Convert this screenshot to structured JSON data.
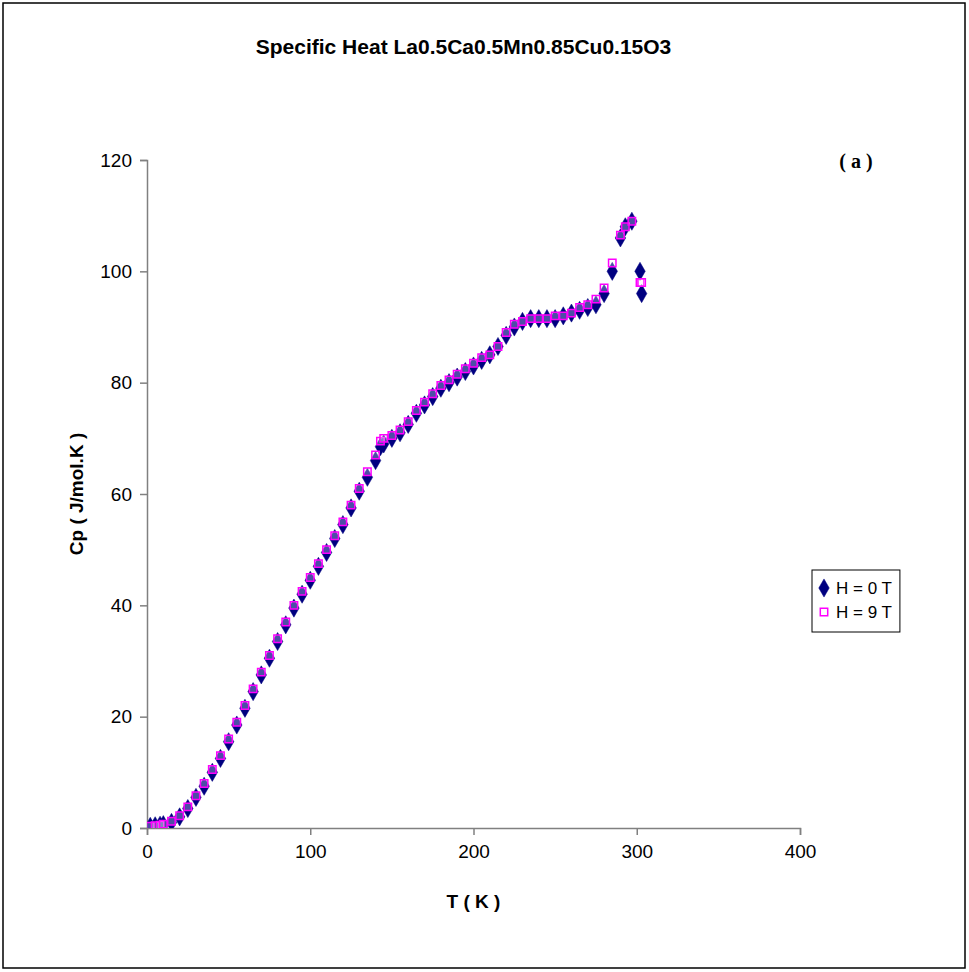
{
  "chart_data": {
    "type": "scatter",
    "title": "Specific Heat La0.5Ca0.5Mn0.85Cu0.15O3",
    "annotation": "( a )",
    "x_label": "T ( K )",
    "y_label": "Cp ( J/mol.K )",
    "xlim": [
      0,
      400
    ],
    "ylim": [
      0,
      120
    ],
    "xticks": [
      0,
      100,
      200,
      300,
      400
    ],
    "yticks": [
      0,
      20,
      40,
      60,
      80,
      100,
      120
    ],
    "grid": false,
    "legend": "right",
    "x": [
      2,
      5,
      8,
      10,
      15,
      20,
      25,
      30,
      35,
      40,
      45,
      50,
      55,
      60,
      65,
      70,
      75,
      80,
      85,
      90,
      95,
      100,
      105,
      110,
      115,
      120,
      125,
      130,
      135,
      140,
      143,
      145,
      150,
      155,
      160,
      165,
      170,
      175,
      180,
      185,
      190,
      195,
      200,
      205,
      210,
      215,
      220,
      225,
      230,
      235,
      240,
      245,
      250,
      255,
      260,
      265,
      270,
      275,
      280,
      285,
      290,
      293,
      297,
      302,
      303
    ],
    "series": [
      {
        "name": "H = 0 T",
        "color": "#000080",
        "marker": "diamond",
        "values": [
          0.3,
          0.4,
          0.5,
          0.6,
          1,
          2,
          3.5,
          5.5,
          7.5,
          10,
          12.5,
          15.5,
          18.5,
          21.5,
          24.5,
          27.5,
          30.5,
          33.5,
          36.5,
          39.5,
          42,
          44.5,
          47,
          49.5,
          52,
          54.5,
          57.5,
          60.5,
          63,
          66,
          68.5,
          69,
          70,
          71,
          72.5,
          74.5,
          76,
          77.5,
          79,
          80,
          81,
          82,
          83,
          84,
          85,
          86.5,
          88.5,
          90,
          91,
          91.5,
          91.5,
          91.5,
          91.5,
          92,
          92.5,
          93,
          93.5,
          94,
          96,
          100,
          106,
          108,
          109,
          100,
          96
        ]
      },
      {
        "name": "H = 9 T",
        "color": "#ff00ff",
        "marker": "square",
        "values": [
          0.3,
          0.4,
          0.5,
          0.7,
          1.2,
          2.2,
          3.8,
          5.8,
          8,
          10.5,
          13,
          16,
          19,
          22,
          25,
          28,
          31,
          34,
          37,
          40,
          42.5,
          45,
          47.5,
          50,
          52.5,
          55,
          58,
          61,
          64,
          67,
          69.5,
          70,
          70.5,
          71.5,
          73,
          75,
          76.5,
          78,
          79.5,
          80.5,
          81.5,
          82.5,
          83.5,
          84.5,
          85,
          86.5,
          89,
          90.5,
          91,
          91.5,
          91.5,
          91.5,
          92,
          92,
          92.5,
          93.5,
          94,
          95,
          97,
          101.5,
          106.5,
          108,
          109,
          98,
          98
        ]
      }
    ]
  }
}
